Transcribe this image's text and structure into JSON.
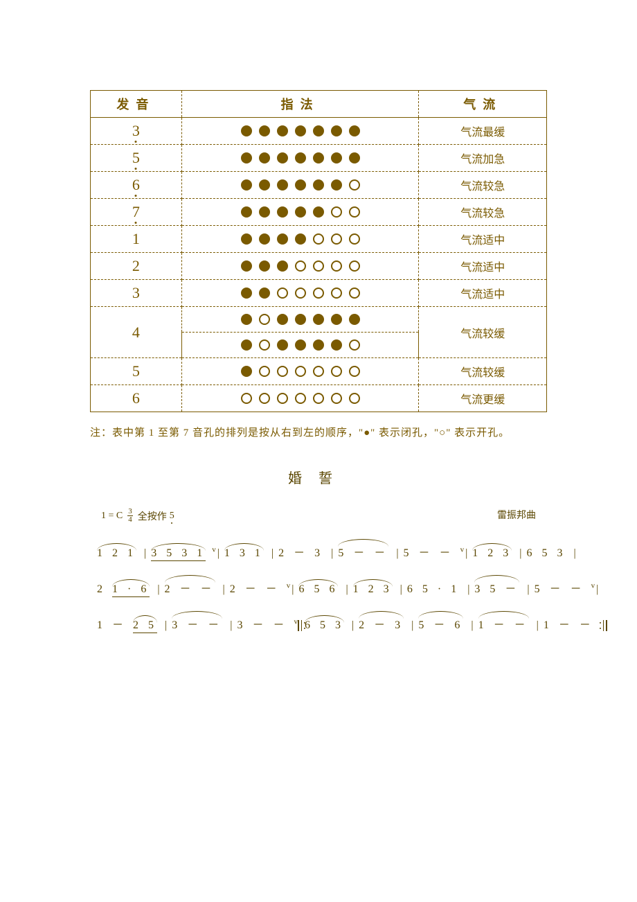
{
  "colors": {
    "ink": "#7a5a00",
    "score_ink": "#5a4600",
    "background": "#ffffff",
    "hole_fill": "#7a5a00",
    "hole_border": "#7a5a00"
  },
  "table": {
    "headers": {
      "note": "发音",
      "fingering": "指法",
      "airflow": "气流"
    },
    "hole_count": 7,
    "rows": [
      {
        "note": "3",
        "low_octave": true,
        "patterns": [
          [
            1,
            1,
            1,
            1,
            1,
            1,
            1
          ]
        ],
        "airflow": "气流最缓"
      },
      {
        "note": "5",
        "low_octave": true,
        "patterns": [
          [
            1,
            1,
            1,
            1,
            1,
            1,
            1
          ]
        ],
        "airflow": "气流加急"
      },
      {
        "note": "6",
        "low_octave": true,
        "patterns": [
          [
            1,
            1,
            1,
            1,
            1,
            1,
            0
          ]
        ],
        "airflow": "气流较急"
      },
      {
        "note": "7",
        "low_octave": true,
        "patterns": [
          [
            1,
            1,
            1,
            1,
            1,
            0,
            0
          ]
        ],
        "airflow": "气流较急"
      },
      {
        "note": "1",
        "low_octave": false,
        "patterns": [
          [
            1,
            1,
            1,
            1,
            0,
            0,
            0
          ]
        ],
        "airflow": "气流适中"
      },
      {
        "note": "2",
        "low_octave": false,
        "patterns": [
          [
            1,
            1,
            1,
            0,
            0,
            0,
            0
          ]
        ],
        "airflow": "气流适中"
      },
      {
        "note": "3",
        "low_octave": false,
        "patterns": [
          [
            1,
            1,
            0,
            0,
            0,
            0,
            0
          ]
        ],
        "airflow": "气流适中"
      },
      {
        "note": "4",
        "low_octave": false,
        "patterns": [
          [
            1,
            0,
            1,
            1,
            1,
            1,
            1
          ],
          [
            1,
            0,
            1,
            1,
            1,
            1,
            0
          ]
        ],
        "airflow": "气流较缓"
      },
      {
        "note": "5",
        "low_octave": false,
        "patterns": [
          [
            1,
            0,
            0,
            0,
            0,
            0,
            0
          ]
        ],
        "airflow": "气流较缓"
      },
      {
        "note": "6",
        "low_octave": false,
        "patterns": [
          [
            0,
            0,
            0,
            0,
            0,
            0,
            0
          ]
        ],
        "airflow": "气流更缓"
      }
    ]
  },
  "footnote": "注：表中第 1 至第 7 音孔的排列是按从右到左的顺序，\"●\" 表示闭孔，\"○\" 表示开孔。",
  "score": {
    "title": "婚誓",
    "key_prefix": "1 = C",
    "time_num": "3",
    "time_den": "4",
    "tuning": "全按作",
    "tuning_note": "5",
    "composer": "雷振邦曲",
    "lines": [
      [
        {
          "type": "slur",
          "text": "1 2 1"
        },
        {
          "type": "bar"
        },
        {
          "type": "slur",
          "text": "3 5 3 1",
          "underline": true
        },
        {
          "type": "breath"
        },
        {
          "type": "bar"
        },
        {
          "type": "slur",
          "text": "1 3 1"
        },
        {
          "type": "bar"
        },
        {
          "type": "text",
          "text": "2 － 3"
        },
        {
          "type": "bar"
        },
        {
          "type": "slur",
          "text": "5 － －"
        },
        {
          "type": "bar"
        },
        {
          "type": "text",
          "text": "5 － －"
        },
        {
          "type": "breath"
        },
        {
          "type": "bar"
        },
        {
          "type": "slur",
          "text": "1 2 3"
        },
        {
          "type": "bar"
        },
        {
          "type": "text",
          "text": "6 5 3"
        },
        {
          "type": "bar"
        }
      ],
      [
        {
          "type": "text",
          "text": "2 "
        },
        {
          "type": "slur",
          "text": "1 · 6",
          "underline": true
        },
        {
          "type": "bar"
        },
        {
          "type": "slur",
          "text": "2 － －"
        },
        {
          "type": "bar"
        },
        {
          "type": "text",
          "text": "2 － －"
        },
        {
          "type": "breath"
        },
        {
          "type": "bar"
        },
        {
          "type": "slur",
          "text": "6 5 6"
        },
        {
          "type": "bar"
        },
        {
          "type": "slur",
          "text": "1 2 3"
        },
        {
          "type": "bar"
        },
        {
          "type": "text",
          "text": "6 5 · 1",
          "underline_last": true
        },
        {
          "type": "bar"
        },
        {
          "type": "slur",
          "text": "3 5 －"
        },
        {
          "type": "bar"
        },
        {
          "type": "text",
          "text": "5 － －"
        },
        {
          "type": "breath"
        },
        {
          "type": "bar"
        }
      ],
      [
        {
          "type": "text",
          "text": "1 － "
        },
        {
          "type": "slur",
          "text": "2 5",
          "underline": true
        },
        {
          "type": "bar"
        },
        {
          "type": "slur",
          "text": "3 － －"
        },
        {
          "type": "bar"
        },
        {
          "type": "text",
          "text": "3 － －"
        },
        {
          "type": "breath"
        },
        {
          "type": "rpt_open"
        },
        {
          "type": "slur",
          "text": "6 5 3"
        },
        {
          "type": "bar"
        },
        {
          "type": "slur",
          "text": "2 － 3"
        },
        {
          "type": "bar"
        },
        {
          "type": "slur",
          "text": "5 － 6"
        },
        {
          "type": "bar"
        },
        {
          "type": "slur",
          "text": "1 － －"
        },
        {
          "type": "bar"
        },
        {
          "type": "text",
          "text": "1 － －"
        },
        {
          "type": "rpt_close"
        }
      ]
    ]
  }
}
